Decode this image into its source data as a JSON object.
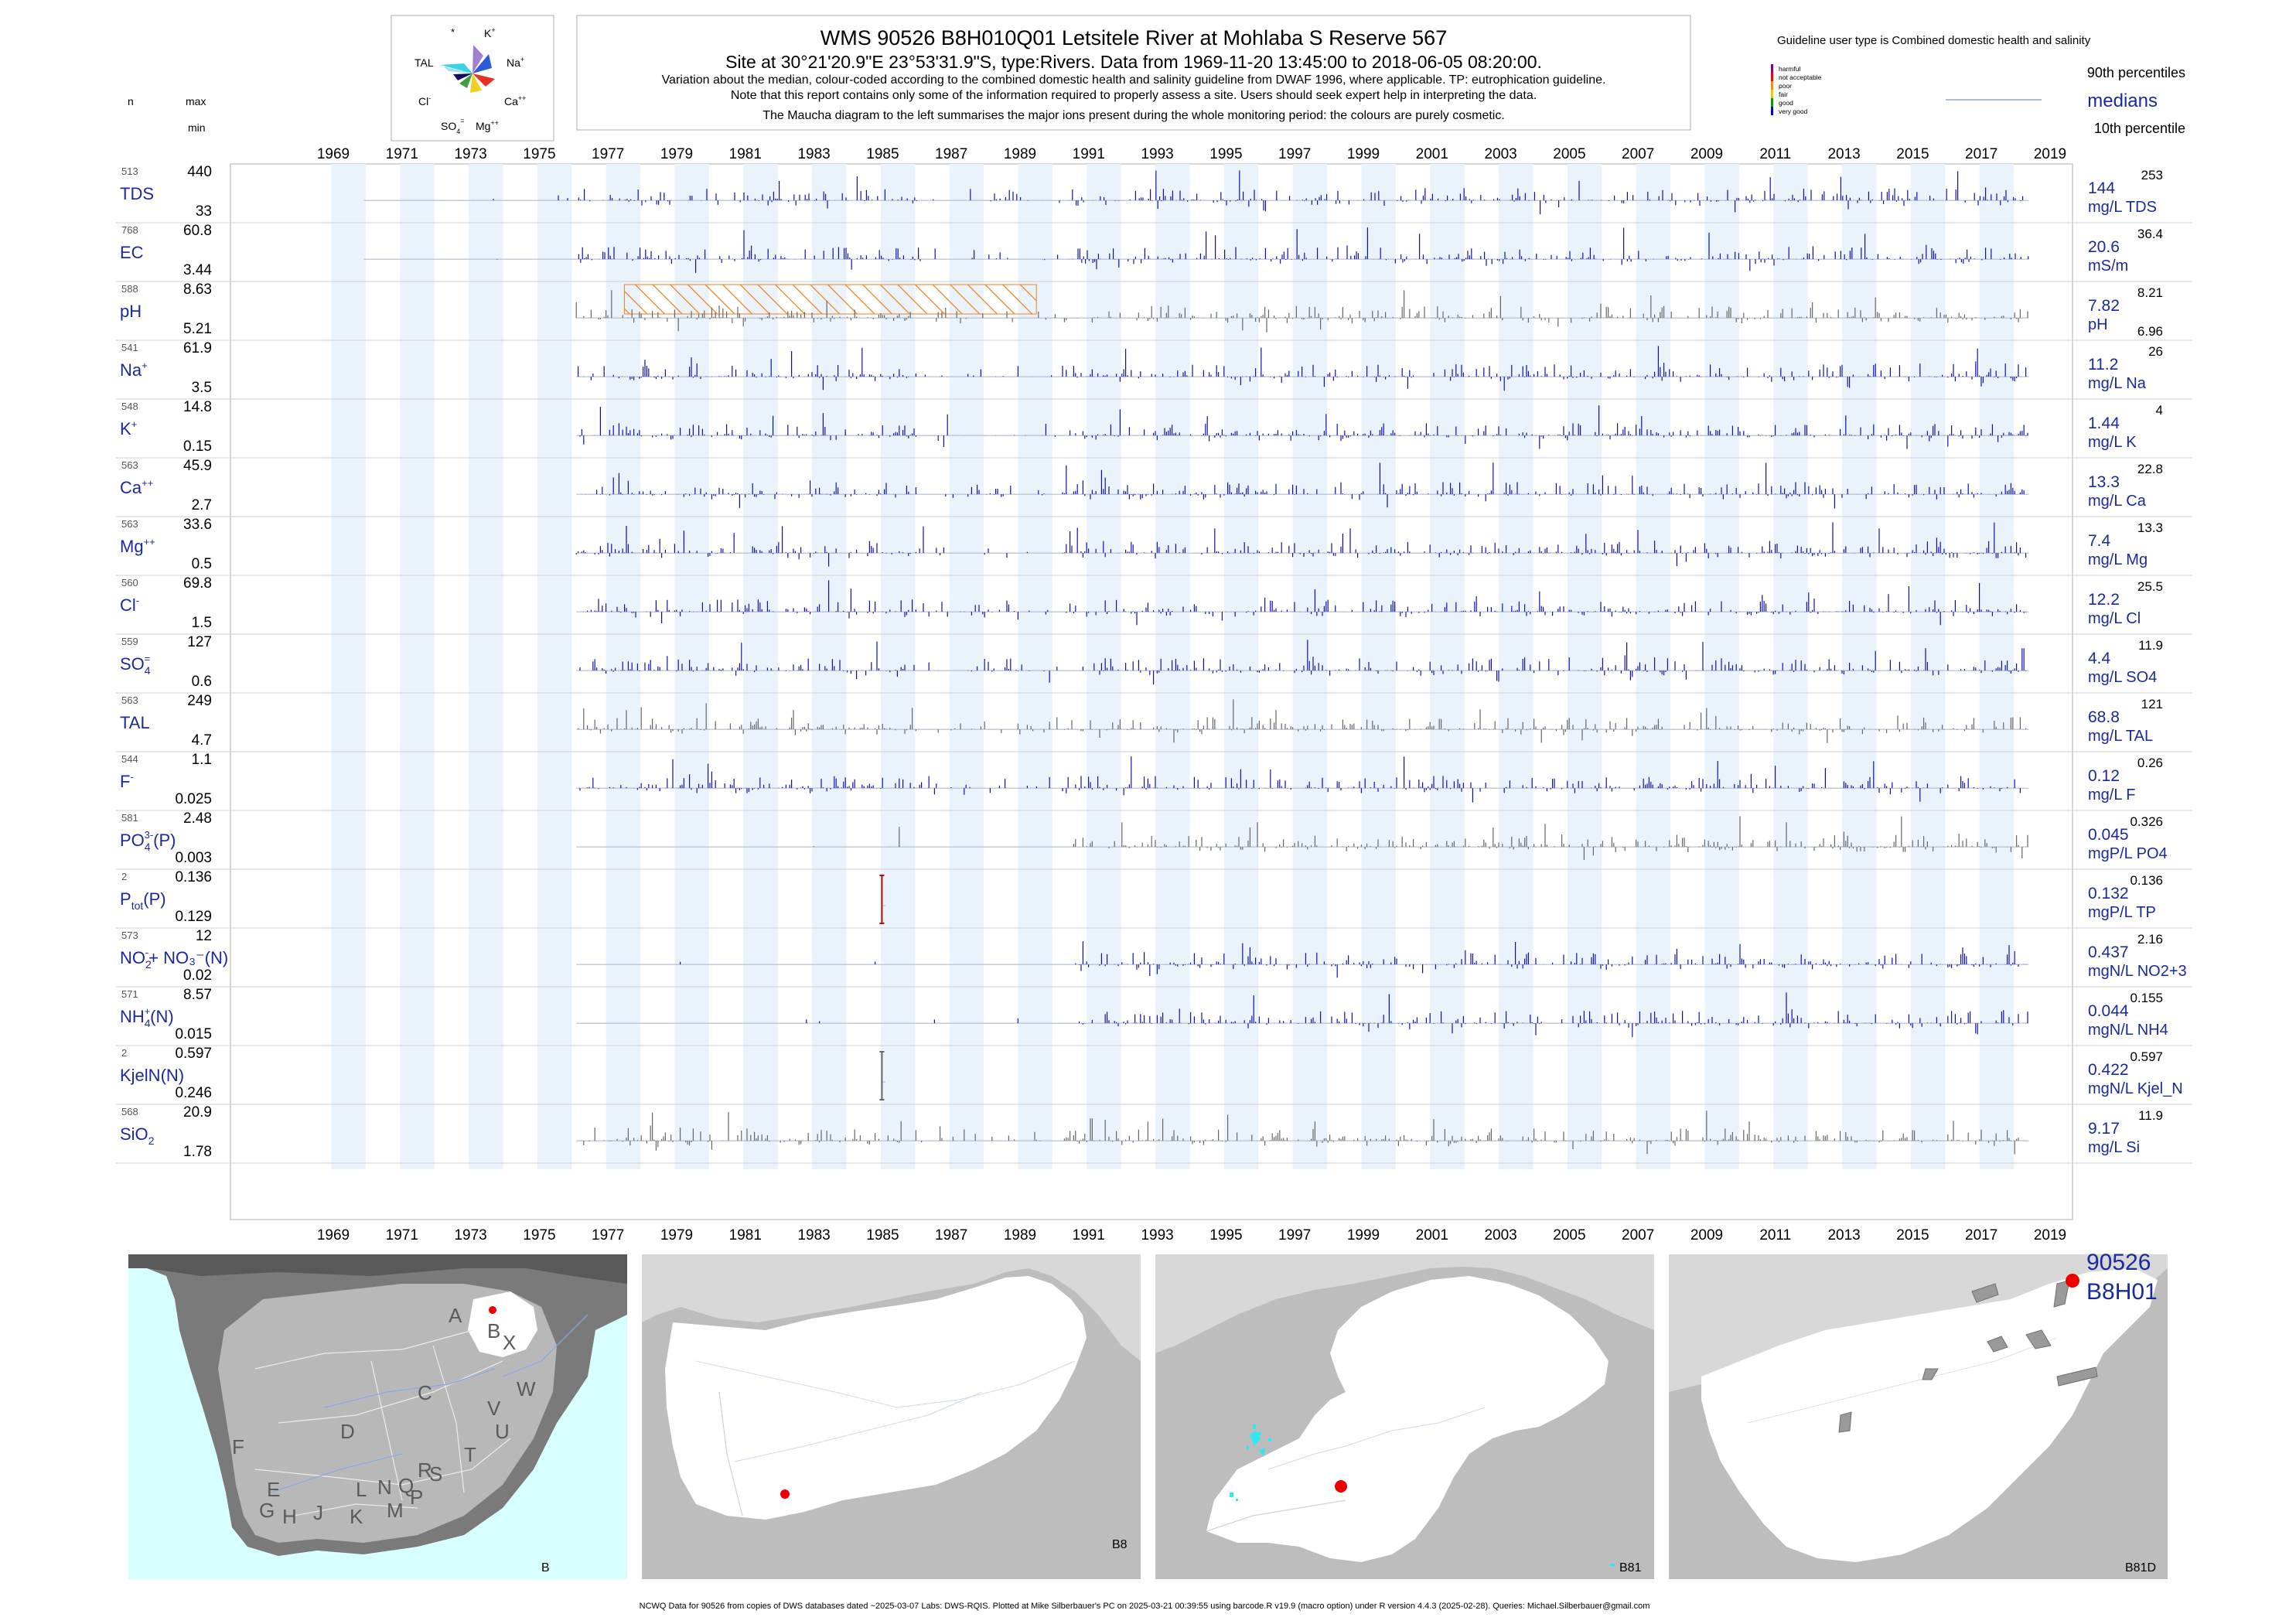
{
  "header": {
    "title": "WMS 90526 B8H010Q01 Letsitele River at Mohlaba S Reserve 567",
    "site_line": "Site at 30°21'20.9\"E 23°53'31.9\"S, type:Rivers.  Data from 1969-11-20 13:45:00 to 2018-06-05 08:20:00.",
    "note_1": "Variation about the median,  colour-coded according to the combined domestic health and salinity guideline from DWAF 1996, where applicable. TP: eutrophication guideline.",
    "note_2": "Note that this report contains only some of the information required to properly assess a site. Users should seek expert help in interpreting the data.",
    "note_3": "The Maucha diagram to the left summarises the major ions present during the whole monitoring period: the colours are purely cosmetic."
  },
  "column_headers": {
    "n": "n",
    "max": "max",
    "min": "min"
  },
  "maucha": {
    "label_top": "*",
    "label_k": "K",
    "label_k_sup": "+",
    "label_tal": "TAL",
    "label_na": "Na",
    "label_na_sup": "+",
    "label_cl": "Cl",
    "label_cl_sup": "-",
    "label_ca": "Ca",
    "label_ca_sup": "++",
    "label_so4": "SO",
    "label_so4_sub": "4",
    "label_so4_sup": "=",
    "label_mg": "Mg",
    "label_mg_sup": "++"
  },
  "legend": {
    "guideline_text": "Guideline user type is Combined domestic health and salinity",
    "classes": [
      {
        "label": "harmful",
        "color": "#8b008b"
      },
      {
        "label": "not acceptable",
        "color": "#ff0000"
      },
      {
        "label": "poor",
        "color": "#ff8c00"
      },
      {
        "label": "fair",
        "color": "#e0d000"
      },
      {
        "label": "good",
        "color": "#00a000"
      },
      {
        "label": "very good",
        "color": "#0000c8"
      }
    ],
    "p90": "90th percentiles",
    "medians": "medians",
    "p10": "10th percentile"
  },
  "years": [
    "1969",
    "1971",
    "1973",
    "1975",
    "1977",
    "1979",
    "1981",
    "1983",
    "1985",
    "1987",
    "1989",
    "1991",
    "1993",
    "1995",
    "1997",
    "1999",
    "2001",
    "2003",
    "2005",
    "2007",
    "2009",
    "2011",
    "2013",
    "2015",
    "2017",
    "2019"
  ],
  "chart_data": {
    "type": "bar",
    "x_axis": "year",
    "x_range": [
      "1968-01-01",
      "2019-12-31"
    ],
    "series": [
      {
        "n": "513",
        "max": "440",
        "min": "33",
        "name": "TDS",
        "median": "144",
        "unit": "mg/L TDS",
        "p90": "253",
        "p10": "",
        "color": "blue",
        "start": 1969.9,
        "dense_from": 1976.1,
        "end": 2018.4
      },
      {
        "n": "768",
        "max": "60.8",
        "min": "3.44",
        "name": "EC",
        "median": "20.6",
        "unit": "mS/m",
        "p90": "36.4",
        "p10": "",
        "color": "blue",
        "start": 1969.9,
        "dense_from": 1976.1,
        "end": 2018.4
      },
      {
        "n": "588",
        "max": "8.63",
        "min": "5.21",
        "name": "pH",
        "median": "7.82",
        "unit": "pH",
        "p90": "8.21",
        "p10": "6.96",
        "color": "gray",
        "start": 1976.1,
        "dense_from": 1976.1,
        "end": 2018.4,
        "hatch": [
          1977.5,
          1989.5
        ]
      },
      {
        "n": "541",
        "max": "61.9",
        "min": "3.5",
        "name": "Na",
        "sup": "+",
        "median": "11.2",
        "unit": "mg/L Na",
        "p90": "26",
        "p10": "",
        "color": "blue",
        "start": 1976.1,
        "dense_from": 1976.1,
        "end": 2018.4
      },
      {
        "n": "548",
        "max": "14.8",
        "min": "0.15",
        "name": "K",
        "sup": "+",
        "median": "1.44",
        "unit": "mg/L K",
        "p90": "4",
        "p10": "",
        "color": "blue",
        "start": 1976.1,
        "dense_from": 1976.1,
        "end": 2018.4
      },
      {
        "n": "563",
        "max": "45.9",
        "min": "2.7",
        "name": "Ca",
        "sup": "++",
        "median": "13.3",
        "unit": "mg/L Ca",
        "p90": "22.8",
        "p10": "",
        "color": "blue",
        "start": 1976.1,
        "dense_from": 1976.1,
        "end": 2018.4
      },
      {
        "n": "563",
        "max": "33.6",
        "min": "0.5",
        "name": "Mg",
        "sup": "++",
        "median": "7.4",
        "unit": "mg/L Mg",
        "p90": "13.3",
        "p10": "",
        "color": "blue",
        "start": 1976.1,
        "dense_from": 1976.1,
        "end": 2018.4
      },
      {
        "n": "560",
        "max": "69.8",
        "min": "1.5",
        "name": "Cl",
        "sup": "-",
        "median": "12.2",
        "unit": "mg/L Cl",
        "p90": "25.5",
        "p10": "",
        "color": "blue",
        "start": 1976.1,
        "dense_from": 1976.1,
        "end": 2018.4
      },
      {
        "n": "559",
        "max": "127",
        "min": "0.6",
        "name": "SO",
        "sub": "4",
        "sup": "=",
        "median": "4.4",
        "unit": "mg/L SO4",
        "p90": "11.9",
        "p10": "",
        "color": "blue",
        "start": 1976.1,
        "dense_from": 1976.1,
        "end": 2018.4
      },
      {
        "n": "563",
        "max": "249",
        "min": "4.7",
        "name": "TAL",
        "median": "68.8",
        "unit": "mg/L TAL",
        "p90": "121",
        "p10": "",
        "color": "gray",
        "start": 1976.1,
        "dense_from": 1976.1,
        "end": 2018.4
      },
      {
        "n": "544",
        "max": "1.1",
        "min": "0.025",
        "name": "F",
        "sup": "-",
        "median": "0.12",
        "unit": "mg/L F",
        "p90": "0.26",
        "p10": "",
        "color": "blue",
        "start": 1976.1,
        "dense_from": 1976.1,
        "end": 2018.4
      },
      {
        "n": "581",
        "max": "2.48",
        "min": "0.003",
        "name": "PO",
        "sub": "4",
        "sup": "3-",
        "suffix": "(P)",
        "median": "0.045",
        "unit": "mgP/L PO4",
        "p90": "0.326",
        "p10": "",
        "color": "gray",
        "start": 1976.1,
        "dense_from": 1990.5,
        "end": 2018.4
      },
      {
        "n": "2",
        "max": "0.136",
        "min": "0.129",
        "name": "P",
        "sub": "tot",
        "suffix": "(P)",
        "median": "0.132",
        "unit": "mgP/L TP",
        "p90": "0.136",
        "p10": "",
        "color": "red",
        "start": 1985.0,
        "dense_from": 1985.0,
        "end": 1985.1,
        "points": [
          [
            1985.0,
            0.129
          ],
          [
            1985.1,
            0.136
          ]
        ]
      },
      {
        "n": "573",
        "max": "12",
        "min": "0.02",
        "name": "NO",
        "sub": "2",
        "sup": "-",
        "suffix": "+ NO₃⁻(N)",
        "median": "0.437",
        "unit": "mgN/L NO2+3",
        "p90": "2.16",
        "p10": "",
        "color": "blue",
        "start": 1976.1,
        "dense_from": 1990.5,
        "end": 2018.4
      },
      {
        "n": "571",
        "max": "8.57",
        "min": "0.015",
        "name": "NH",
        "sub": "4",
        "sup": "+",
        "suffix": "(N)",
        "median": "0.044",
        "unit": "mgN/L NH4",
        "p90": "0.155",
        "p10": "",
        "color": "blue",
        "start": 1976.1,
        "dense_from": 1990.5,
        "end": 2018.4
      },
      {
        "n": "2",
        "max": "0.597",
        "min": "0.246",
        "name": "KjelN(N)",
        "median": "0.422",
        "unit": "mgN/L Kjel_N",
        "p90": "0.597",
        "p10": "",
        "color": "gray",
        "start": 1985.0,
        "dense_from": 1985.0,
        "end": 1985.1,
        "points": [
          [
            1985.0,
            0.246
          ],
          [
            1985.1,
            0.597
          ]
        ]
      },
      {
        "n": "568",
        "max": "20.9",
        "min": "1.78",
        "name": "SiO",
        "sub": "2",
        "median": "9.17",
        "unit": "mg/L Si",
        "p90": "11.9",
        "p10": "",
        "color": "gray",
        "start": 1976.1,
        "dense_from": 1976.1,
        "end": 2018.4
      }
    ]
  },
  "maps": {
    "sa_labels": [
      "A",
      "B",
      "X",
      "W",
      "C",
      "V",
      "U",
      "D",
      "T",
      "F",
      "E",
      "S",
      "R",
      "Q",
      "N",
      "P",
      "L",
      "M",
      "K",
      "J",
      "H",
      "G"
    ],
    "panel1_label": "B",
    "panel2_label": "B8",
    "panel3_label": "B81",
    "panel4_label": "B81D",
    "site_label_1": "90526",
    "site_label_2": "B8H01"
  },
  "footer": "NCWQ Data for 90526 from copies of DWS databases dated ~2025-03-07 Labs: DWS-RQIS. Plotted at Mike Silberbauer's PC on 2025-03-21 00:39:55 using barcode.R v19.9 (macro option) under R version 4.4.3 (2025-02-28). Queries: Michael.Silberbauer@gmail.com"
}
